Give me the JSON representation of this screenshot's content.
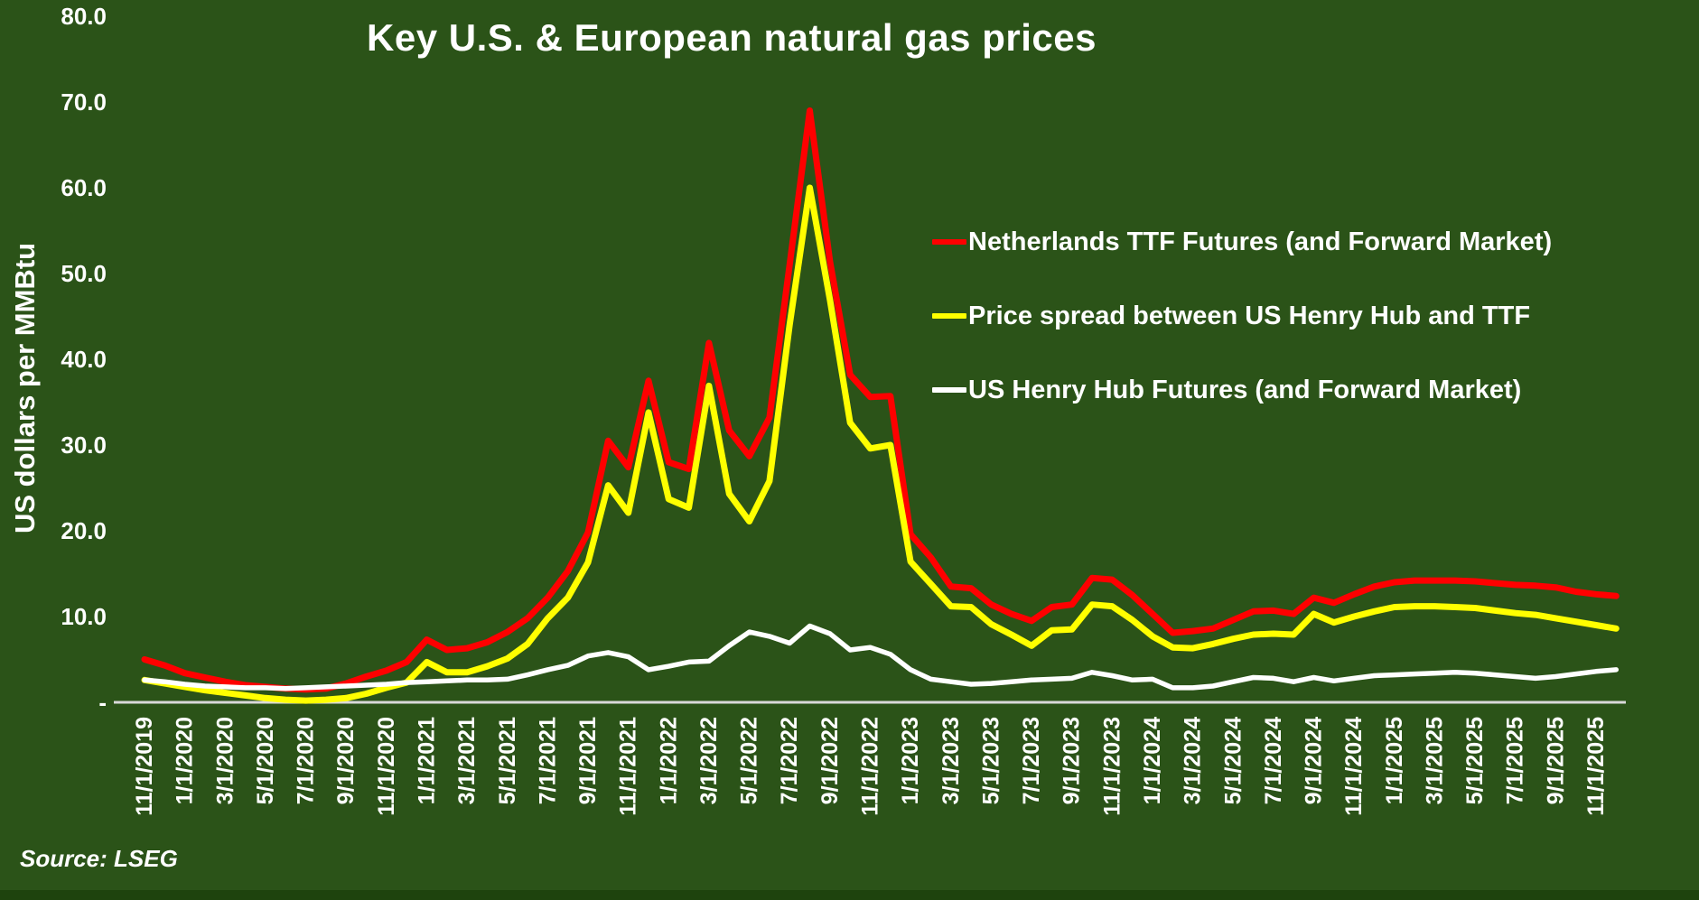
{
  "title": "Key U.S. & European natural gas prices",
  "y_axis_title": "US dollars per MMBtu",
  "source_note": "Source: LSEG",
  "colors": {
    "background": "#2B5318",
    "axis_line": "#D9D9D9",
    "text": "#FFFFFF",
    "ttf_red": "#FF0000",
    "spread_yellow": "#FFFF00",
    "henry_hub_white": "#FFFFFF"
  },
  "legend": {
    "items": [
      {
        "id": "ttf",
        "label": "Netherlands TTF Futures (and Forward Market)",
        "color": "#FF0000"
      },
      {
        "id": "spread",
        "label": "Price spread between US Henry Hub and TTF",
        "color": "#FFFF00"
      },
      {
        "id": "henry-hub",
        "label": "US Henry Hub Futures (and Forward Market)",
        "color": "#FFFFFF"
      }
    ]
  },
  "chart_data": {
    "type": "line",
    "title": "Key U.S. & European natural gas prices",
    "xlabel": "",
    "ylabel": "US dollars per MMBtu",
    "ylim": [
      0,
      80
    ],
    "grid": false,
    "legend_position": "middle-right",
    "y_ticks": [
      {
        "label": "80.0",
        "value": 80
      },
      {
        "label": "70.0",
        "value": 70
      },
      {
        "label": "60.0",
        "value": 60
      },
      {
        "label": "50.0",
        "value": 50
      },
      {
        "label": "40.0",
        "value": 40
      },
      {
        "label": "30.0",
        "value": 30
      },
      {
        "label": "20.0",
        "value": 20
      },
      {
        "label": "10.0",
        "value": 10
      },
      {
        "label": "-",
        "value": 0
      }
    ],
    "x_tick_every": 2,
    "x_tick_last_index": 72,
    "categories": [
      "11/1/2019",
      "12/1/2019",
      "1/1/2020",
      "2/1/2020",
      "3/1/2020",
      "4/1/2020",
      "5/1/2020",
      "6/1/2020",
      "7/1/2020",
      "8/1/2020",
      "9/1/2020",
      "10/1/2020",
      "11/1/2020",
      "12/1/2020",
      "1/1/2021",
      "2/1/2021",
      "3/1/2021",
      "4/1/2021",
      "5/1/2021",
      "6/1/2021",
      "7/1/2021",
      "8/1/2021",
      "9/1/2021",
      "10/1/2021",
      "11/1/2021",
      "12/1/2021",
      "1/1/2022",
      "2/1/2022",
      "3/1/2022",
      "4/1/2022",
      "5/1/2022",
      "6/1/2022",
      "7/1/2022",
      "8/1/2022",
      "9/1/2022",
      "10/1/2022",
      "11/1/2022",
      "12/1/2022",
      "1/1/2023",
      "2/1/2023",
      "3/1/2023",
      "4/1/2023",
      "5/1/2023",
      "6/1/2023",
      "7/1/2023",
      "8/1/2023",
      "9/1/2023",
      "10/1/2023",
      "11/1/2023",
      "12/1/2023",
      "1/1/2024",
      "2/1/2024",
      "3/1/2024",
      "4/1/2024",
      "5/1/2024",
      "6/1/2024",
      "7/1/2024",
      "8/1/2024",
      "9/1/2024",
      "10/1/2024",
      "11/1/2024",
      "12/1/2024",
      "1/1/2025",
      "2/1/2025",
      "3/1/2025",
      "4/1/2025",
      "5/1/2025",
      "6/1/2025",
      "7/1/2025",
      "8/1/2025",
      "9/1/2025",
      "10/1/2025",
      "11/1/2025",
      "12/1/2025"
    ],
    "series": [
      {
        "id": "ttf",
        "name": "Netherlands TTF Futures (and Forward Market)",
        "color": "#FF0000",
        "stroke_width": 7,
        "values": [
          5.0,
          4.3,
          3.4,
          2.9,
          2.4,
          2.0,
          1.8,
          1.6,
          1.5,
          1.6,
          2.2,
          3.0,
          3.7,
          4.7,
          7.3,
          6.1,
          6.3,
          7.0,
          8.2,
          9.8,
          12.2,
          15.3,
          19.8,
          30.5,
          27.4,
          37.5,
          28.0,
          27.2,
          41.9,
          31.7,
          28.7,
          33.2,
          51.0,
          69.0,
          51.4,
          38.2,
          35.6,
          35.7,
          19.6,
          16.9,
          13.5,
          13.3,
          11.4,
          10.3,
          9.5,
          11.1,
          11.4,
          14.5,
          14.3,
          12.5,
          10.3,
          8.1,
          8.3,
          8.6,
          9.6,
          10.6,
          10.7,
          10.3,
          12.2,
          11.6,
          12.6,
          13.5,
          14.0,
          14.2,
          14.2,
          14.2,
          14.1,
          13.9,
          13.7,
          13.6,
          13.4,
          12.9,
          12.6,
          12.4
        ]
      },
      {
        "id": "spread",
        "name": "Price spread between US Henry Hub and TTF",
        "color": "#FFFF00",
        "stroke_width": 7,
        "values": [
          2.6,
          2.2,
          1.8,
          1.4,
          1.1,
          0.8,
          0.5,
          0.3,
          0.2,
          0.3,
          0.5,
          1.0,
          1.7,
          2.3,
          4.7,
          3.5,
          3.5,
          4.2,
          5.1,
          6.8,
          9.8,
          12.2,
          16.3,
          25.3,
          22.1,
          33.8,
          23.7,
          22.7,
          36.9,
          24.3,
          21.1,
          25.8,
          44.0,
          60.0,
          46.9,
          32.6,
          29.6,
          30.0,
          16.4,
          13.8,
          11.2,
          11.1,
          9.1,
          7.9,
          6.6,
          8.4,
          8.5,
          11.4,
          11.2,
          9.6,
          7.7,
          6.4,
          6.3,
          6.8,
          7.4,
          7.9,
          8.0,
          7.9,
          10.3,
          9.3,
          10.0,
          10.6,
          11.1,
          11.2,
          11.2,
          11.1,
          11.0,
          10.7,
          10.4,
          10.2,
          9.8,
          9.4,
          9.0,
          8.6
        ]
      },
      {
        "id": "henry-hub",
        "name": "US Henry Hub Futures (and Forward Market)",
        "color": "#FFFFFF",
        "stroke_width": 5.5,
        "values": [
          2.6,
          2.4,
          2.1,
          1.9,
          1.8,
          1.7,
          1.7,
          1.6,
          1.7,
          1.8,
          1.9,
          2.0,
          2.1,
          2.3,
          2.4,
          2.5,
          2.6,
          2.6,
          2.7,
          3.2,
          3.8,
          4.3,
          5.4,
          5.8,
          5.3,
          3.8,
          4.2,
          4.7,
          4.8,
          6.6,
          8.2,
          7.7,
          6.9,
          8.9,
          8.0,
          6.1,
          6.4,
          5.6,
          3.8,
          2.7,
          2.4,
          2.1,
          2.2,
          2.4,
          2.6,
          2.7,
          2.8,
          3.5,
          3.1,
          2.6,
          2.7,
          1.7,
          1.7,
          1.9,
          2.4,
          2.9,
          2.8,
          2.4,
          2.9,
          2.5,
          2.8,
          3.1,
          3.2,
          3.3,
          3.4,
          3.5,
          3.4,
          3.2,
          3.0,
          2.8,
          3.0,
          3.3,
          3.6,
          3.8
        ]
      }
    ]
  }
}
